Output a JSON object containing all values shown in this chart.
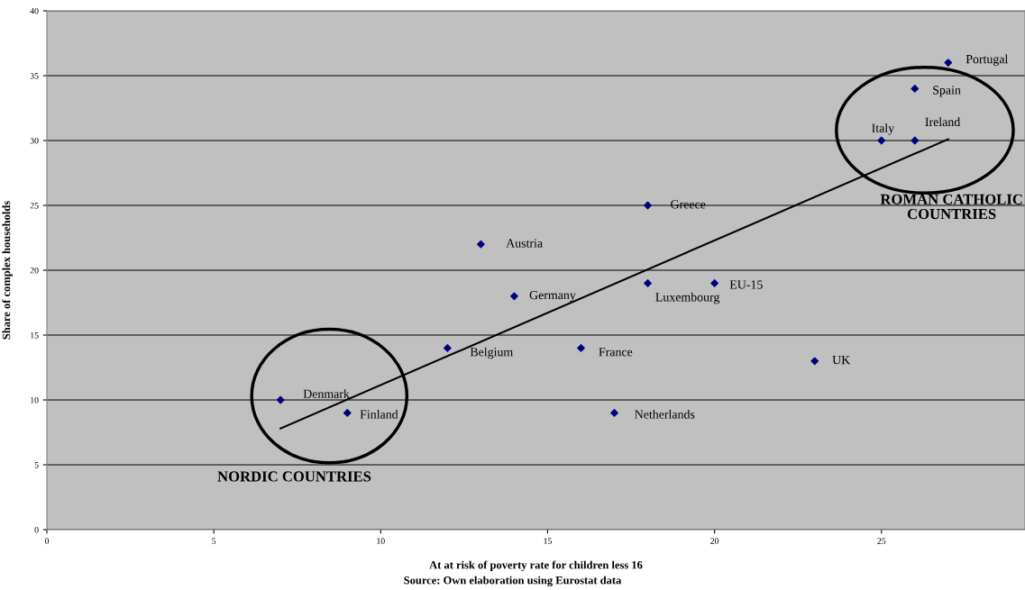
{
  "chart_data": {
    "type": "scatter",
    "xlabel": "At at risk of poverty rate for children less 16",
    "ylabel": "Share of complex households",
    "series": [
      {
        "color": "#000080",
        "marker": "diamond",
        "x": [
          7,
          9,
          12,
          13,
          14,
          16,
          17,
          18,
          18,
          20,
          23,
          25,
          26,
          26,
          27
        ],
        "values": [
          10,
          9,
          14,
          22,
          18,
          14,
          9,
          25,
          19,
          19,
          13,
          30,
          30,
          34,
          36
        ]
      },
      {
        "type": "line",
        "color": "#000000",
        "marker": "none",
        "line_style": "solid",
        "x": [
          7,
          27
        ],
        "values": [
          7.8,
          30.1
        ]
      }
    ],
    "annotations": [
      {
        "text": "Denmark",
        "x": 7,
        "y": 10
      },
      {
        "text": "Finland",
        "x": 9,
        "y": 9
      },
      {
        "text": "Belgium",
        "x": 12,
        "y": 14
      },
      {
        "text": "Austria",
        "x": 13,
        "y": 22
      },
      {
        "text": "Germany",
        "x": 14,
        "y": 18
      },
      {
        "text": "France",
        "x": 16,
        "y": 14
      },
      {
        "text": "Netherlands",
        "x": 17,
        "y": 9
      },
      {
        "text": "Greece",
        "x": 18,
        "y": 25
      },
      {
        "text": "Luxembourg",
        "x": 18,
        "y": 19
      },
      {
        "text": "EU-15",
        "x": 20,
        "y": 19
      },
      {
        "text": "UK",
        "x": 23,
        "y": 13
      },
      {
        "text": "Italy",
        "x": 25,
        "y": 30
      },
      {
        "text": "Ireland",
        "x": 26,
        "y": 30
      },
      {
        "text": "Spain",
        "x": 26,
        "y": 34
      },
      {
        "text": "Portugal",
        "x": 27,
        "y": 36
      },
      "NORDIC COUNTRIES",
      "ROMAN CATHOLIC\nCOUNTRIES",
      "Source: Own elaboration using Eurostat data"
    ],
    "xlim": [
      0,
      29.3
    ],
    "ylim": [
      0,
      40
    ],
    "xticks": [
      0,
      5,
      10,
      15,
      20,
      25
    ],
    "yticks": [
      0,
      5,
      10,
      15,
      20,
      25,
      30,
      35,
      40
    ],
    "grid": "y",
    "legend": false
  }
}
